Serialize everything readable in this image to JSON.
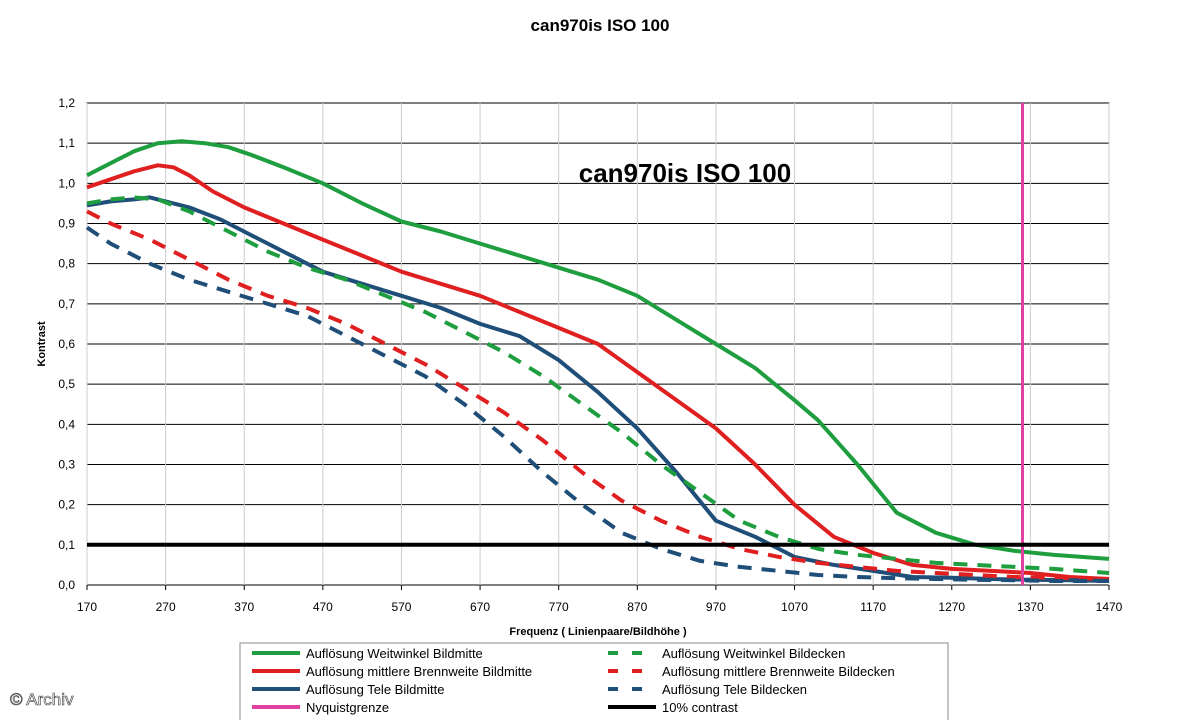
{
  "chart_data": {
    "type": "line",
    "title": "can970is ISO 100",
    "inner_title": "can970is ISO 100",
    "xlabel": "Frequenz ( Linienpaare/Bildhöhe )",
    "ylabel": "Kontrast",
    "xlim": [
      170,
      1470
    ],
    "ylim": [
      0,
      1.2
    ],
    "x_ticks": [
      170,
      270,
      370,
      470,
      570,
      670,
      770,
      870,
      970,
      1070,
      1170,
      1270,
      1370,
      1470
    ],
    "y_ticks": [
      "0,0",
      "0,1",
      "0,2",
      "0,3",
      "0,4",
      "0,5",
      "0,6",
      "0,7",
      "0,8",
      "0,9",
      "1,0",
      "1,1",
      "1,2"
    ],
    "grid": "horizontal",
    "legend_position": "bottom",
    "series": [
      {
        "name": "Auflösung Weitwinkel Bildmitte",
        "color": "#1e9e3e",
        "dash": "solid",
        "x": [
          170,
          200,
          230,
          260,
          290,
          320,
          350,
          380,
          420,
          470,
          520,
          570,
          620,
          670,
          720,
          770,
          820,
          870,
          920,
          970,
          1020,
          1070,
          1100,
          1150,
          1200,
          1250,
          1300,
          1350,
          1400,
          1470
        ],
        "y": [
          1.02,
          1.05,
          1.08,
          1.1,
          1.105,
          1.1,
          1.09,
          1.07,
          1.04,
          1.0,
          0.95,
          0.905,
          0.88,
          0.85,
          0.82,
          0.79,
          0.76,
          0.72,
          0.66,
          0.6,
          0.54,
          0.46,
          0.41,
          0.3,
          0.18,
          0.13,
          0.1,
          0.085,
          0.075,
          0.065
        ]
      },
      {
        "name": "Auflösung mittlere Brennweite Bildmitte",
        "color": "#e02020",
        "dash": "solid",
        "x": [
          170,
          200,
          230,
          260,
          280,
          300,
          330,
          370,
          420,
          470,
          520,
          570,
          620,
          670,
          720,
          770,
          820,
          870,
          920,
          970,
          1020,
          1070,
          1120,
          1170,
          1220,
          1270,
          1320,
          1370,
          1420,
          1470
        ],
        "y": [
          0.99,
          1.01,
          1.03,
          1.045,
          1.04,
          1.02,
          0.98,
          0.94,
          0.9,
          0.86,
          0.82,
          0.78,
          0.75,
          0.72,
          0.68,
          0.64,
          0.6,
          0.53,
          0.46,
          0.39,
          0.3,
          0.2,
          0.12,
          0.08,
          0.05,
          0.04,
          0.035,
          0.03,
          0.02,
          0.015
        ]
      },
      {
        "name": "Auflösung Tele Bildmitte",
        "color": "#1f4e79",
        "dash": "solid",
        "x": [
          170,
          200,
          230,
          250,
          270,
          300,
          340,
          380,
          430,
          470,
          520,
          570,
          620,
          670,
          720,
          770,
          820,
          870,
          920,
          970,
          1020,
          1070,
          1120,
          1170,
          1220,
          1270,
          1320,
          1370,
          1420,
          1470
        ],
        "y": [
          0.945,
          0.955,
          0.96,
          0.965,
          0.955,
          0.94,
          0.91,
          0.87,
          0.82,
          0.78,
          0.75,
          0.72,
          0.69,
          0.65,
          0.62,
          0.56,
          0.48,
          0.39,
          0.28,
          0.16,
          0.12,
          0.07,
          0.05,
          0.035,
          0.02,
          0.018,
          0.015,
          0.013,
          0.012,
          0.01
        ]
      },
      {
        "name": "Auflösung Weitwinkel Bildecken",
        "color": "#1e9e3e",
        "dash": "dashed",
        "x": [
          170,
          200,
          230,
          260,
          300,
          350,
          400,
          450,
          500,
          550,
          600,
          650,
          700,
          750,
          800,
          850,
          900,
          950,
          1000,
          1050,
          1100,
          1150,
          1200,
          1250,
          1300,
          1350,
          1400,
          1470
        ],
        "y": [
          0.95,
          0.96,
          0.965,
          0.96,
          0.93,
          0.88,
          0.83,
          0.79,
          0.76,
          0.72,
          0.68,
          0.63,
          0.58,
          0.52,
          0.45,
          0.38,
          0.3,
          0.23,
          0.16,
          0.12,
          0.09,
          0.075,
          0.065,
          0.055,
          0.05,
          0.045,
          0.04,
          0.03
        ]
      },
      {
        "name": "Auflösung mittlere Brennweite Bildecken",
        "color": "#e02020",
        "dash": "dashed",
        "x": [
          170,
          200,
          250,
          300,
          350,
          400,
          450,
          500,
          550,
          600,
          650,
          700,
          750,
          800,
          850,
          900,
          950,
          1000,
          1050,
          1100,
          1150,
          1200,
          1250,
          1300,
          1350,
          1400,
          1470
        ],
        "y": [
          0.93,
          0.9,
          0.86,
          0.81,
          0.76,
          0.72,
          0.69,
          0.65,
          0.6,
          0.55,
          0.49,
          0.43,
          0.36,
          0.28,
          0.21,
          0.16,
          0.12,
          0.09,
          0.07,
          0.055,
          0.045,
          0.035,
          0.03,
          0.025,
          0.02,
          0.018,
          0.015
        ]
      },
      {
        "name": "Auflösung Tele Bildecken",
        "color": "#1f4e79",
        "dash": "dashed",
        "x": [
          170,
          200,
          250,
          300,
          350,
          400,
          450,
          500,
          550,
          600,
          650,
          700,
          750,
          800,
          850,
          900,
          950,
          1000,
          1050,
          1100,
          1150,
          1200,
          1250,
          1300,
          1350,
          1400,
          1470
        ],
        "y": [
          0.89,
          0.85,
          0.8,
          0.76,
          0.73,
          0.7,
          0.67,
          0.62,
          0.57,
          0.52,
          0.45,
          0.37,
          0.28,
          0.2,
          0.13,
          0.09,
          0.06,
          0.045,
          0.035,
          0.025,
          0.02,
          0.017,
          0.015,
          0.013,
          0.012,
          0.01,
          0.01
        ]
      },
      {
        "name": "Nyquistgrenze",
        "color": "#e040a0",
        "dash": "solid",
        "x": [
          1360,
          1360
        ],
        "y": [
          0,
          1.2
        ]
      },
      {
        "name": "10% contrast",
        "color": "#000000",
        "dash": "solid",
        "x": [
          170,
          1470
        ],
        "y": [
          0.1,
          0.1
        ]
      }
    ]
  },
  "watermark": "© Archiv"
}
